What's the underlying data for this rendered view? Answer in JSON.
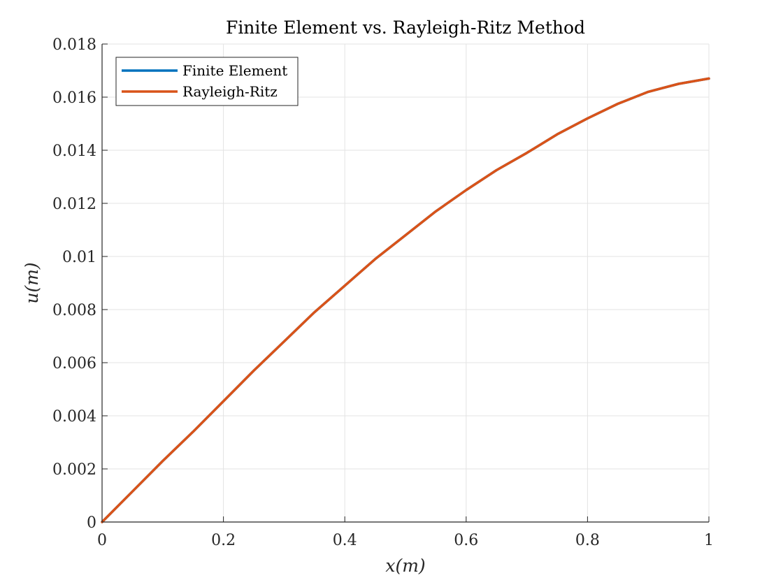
{
  "chart_data": {
    "type": "line",
    "title": "Finite Element vs. Rayleigh-Ritz Method",
    "xlabel": "x(m)",
    "ylabel": "u(m)",
    "xlim": [
      0,
      1
    ],
    "ylim": [
      0,
      0.018
    ],
    "xticks": [
      0,
      0.2,
      0.4,
      0.6,
      0.8,
      1
    ],
    "xtick_labels": [
      "0",
      "0.2",
      "0.4",
      "0.6",
      "0.8",
      "1"
    ],
    "yticks": [
      0,
      0.002,
      0.004,
      0.006,
      0.008,
      0.01,
      0.012,
      0.014,
      0.016,
      0.018
    ],
    "ytick_labels": [
      "0",
      "0.002",
      "0.004",
      "0.006",
      "0.008",
      "0.01",
      "0.012",
      "0.014",
      "0.016",
      "0.018"
    ],
    "grid": true,
    "legend_position": "top-left",
    "x": [
      0,
      0.05,
      0.1,
      0.15,
      0.2,
      0.25,
      0.3,
      0.35,
      0.4,
      0.45,
      0.5,
      0.55,
      0.6,
      0.65,
      0.7,
      0.75,
      0.8,
      0.85,
      0.9,
      0.95,
      1.0
    ],
    "series": [
      {
        "name": "Finite Element",
        "color": "#0072bd",
        "values": [
          0,
          0.00115,
          0.0023,
          0.0034,
          0.00455,
          0.0057,
          0.0068,
          0.0079,
          0.0089,
          0.0099,
          0.0108,
          0.0117,
          0.0125,
          0.01325,
          0.0139,
          0.0146,
          0.0152,
          0.01575,
          0.0162,
          0.0165,
          0.0167
        ]
      },
      {
        "name": "Rayleigh-Ritz",
        "color": "#d95319",
        "values": [
          0,
          0.00115,
          0.0023,
          0.0034,
          0.00455,
          0.0057,
          0.0068,
          0.0079,
          0.0089,
          0.0099,
          0.0108,
          0.0117,
          0.0125,
          0.01325,
          0.0139,
          0.0146,
          0.0152,
          0.01575,
          0.0162,
          0.0165,
          0.0167
        ]
      }
    ]
  }
}
